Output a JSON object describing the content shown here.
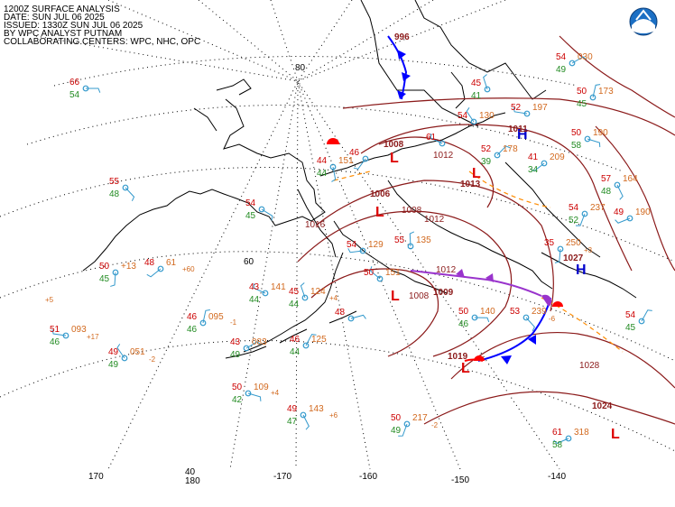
{
  "header": {
    "title": "1200Z SURFACE ANALYSIS",
    "date": "DATE: SUN JUL 06 2025",
    "issued": "ISSUED: 1330Z SUN JUL 06 2025",
    "analyst": "BY WPC ANALYST PUTNAM",
    "centers": "COLLABORATING CENTERS: WPC, NHC, OPC"
  },
  "logo": {
    "name": "noaa-logo",
    "color": "#1b6fc4"
  },
  "colors": {
    "temperature": "#cc0000",
    "dewpoint": "#228b22",
    "pressure": "#d2691e",
    "wind": "#3399cc",
    "isobar": "#8b1a1a",
    "high": "#0000cc",
    "low": "#dd0000",
    "front_cold": "#0000ff",
    "front_warm": "#ff0000",
    "occluded": "#9933cc",
    "trough": "#ff8c00"
  },
  "grid_labels": {
    "lat80": "80",
    "lat60": "60",
    "lat40": "40",
    "lon170": "170",
    "lon180": "180",
    "lonm170": "-170",
    "lonm160": "-160",
    "lonm150": "-150",
    "lonm140": "-140"
  },
  "pressure_centers": [
    {
      "type": "L",
      "value": "1008"
    },
    {
      "type": "L",
      "value": "1013"
    },
    {
      "type": "L",
      "value": "1006"
    },
    {
      "type": "L",
      "value": "1009"
    },
    {
      "type": "L",
      "value": "1019"
    },
    {
      "type": "H",
      "value": "1027"
    },
    {
      "type": "H",
      "value": "1011"
    },
    {
      "type": "L",
      "value": "996"
    },
    {
      "type": "L",
      "value": "1024"
    }
  ],
  "isobar_labels": [
    "1028",
    "1024",
    "1012",
    "1008",
    "1016",
    "1012",
    "1008",
    "1012",
    "1028"
  ],
  "stations": [
    {
      "t": "66",
      "d": "54",
      "p": ""
    },
    {
      "t": "55",
      "d": "48",
      "p": ""
    },
    {
      "t": "50",
      "d": "45",
      "p": "+13"
    },
    {
      "t": "48",
      "d": "",
      "p": "61"
    },
    {
      "t": "51",
      "d": "46",
      "p": "093"
    },
    {
      "t": "49",
      "d": "49",
      "p": "051"
    },
    {
      "t": "46",
      "d": "46",
      "p": "095"
    },
    {
      "t": "43",
      "d": "49",
      "p": "083"
    },
    {
      "t": "50",
      "d": "42",
      "p": "109"
    },
    {
      "t": "49",
      "d": "47",
      "p": "143"
    },
    {
      "t": "50",
      "d": "49",
      "p": "217"
    },
    {
      "t": "61",
      "d": "58",
      "p": "318"
    },
    {
      "t": "43",
      "d": "44",
      "p": "141"
    },
    {
      "t": "45",
      "d": "44",
      "p": "124"
    },
    {
      "t": "46",
      "d": "44",
      "p": "125"
    },
    {
      "t": "48",
      "d": "",
      "p": ""
    },
    {
      "t": "54",
      "d": "45",
      "p": ""
    },
    {
      "t": "44",
      "d": "44",
      "p": "151"
    },
    {
      "t": "46",
      "d": "",
      "p": ""
    },
    {
      "t": "54",
      "d": "",
      "p": "129"
    },
    {
      "t": "50",
      "d": "",
      "p": "151"
    },
    {
      "t": "55",
      "d": "",
      "p": "135"
    },
    {
      "t": "52",
      "d": "39",
      "p": "178"
    },
    {
      "t": "50",
      "d": "46",
      "p": "140"
    },
    {
      "t": "53",
      "d": "",
      "p": "239"
    },
    {
      "t": "35",
      "d": "",
      "p": "250"
    },
    {
      "t": "41",
      "d": "34",
      "p": "209"
    },
    {
      "t": "52",
      "d": "",
      "p": "197"
    },
    {
      "t": "54",
      "d": "",
      "p": "130"
    },
    {
      "t": "50",
      "d": "45",
      "p": "173"
    },
    {
      "t": "54",
      "d": "49",
      "p": "030"
    },
    {
      "t": "50",
      "d": "58",
      "p": "190"
    },
    {
      "t": "57",
      "d": "48",
      "p": "164"
    },
    {
      "t": "54",
      "d": "52",
      "p": "237"
    },
    {
      "t": "49",
      "d": "",
      "p": "190"
    },
    {
      "t": "61",
      "d": "",
      "p": ""
    },
    {
      "t": "45",
      "d": "41",
      "p": ""
    },
    {
      "t": "54",
      "d": "45",
      "p": ""
    }
  ],
  "tendencies": [
    "+60",
    "+17",
    "-2",
    "-1",
    "+4",
    "+6",
    "-2",
    "+3",
    "+4",
    "-6",
    "+5"
  ]
}
